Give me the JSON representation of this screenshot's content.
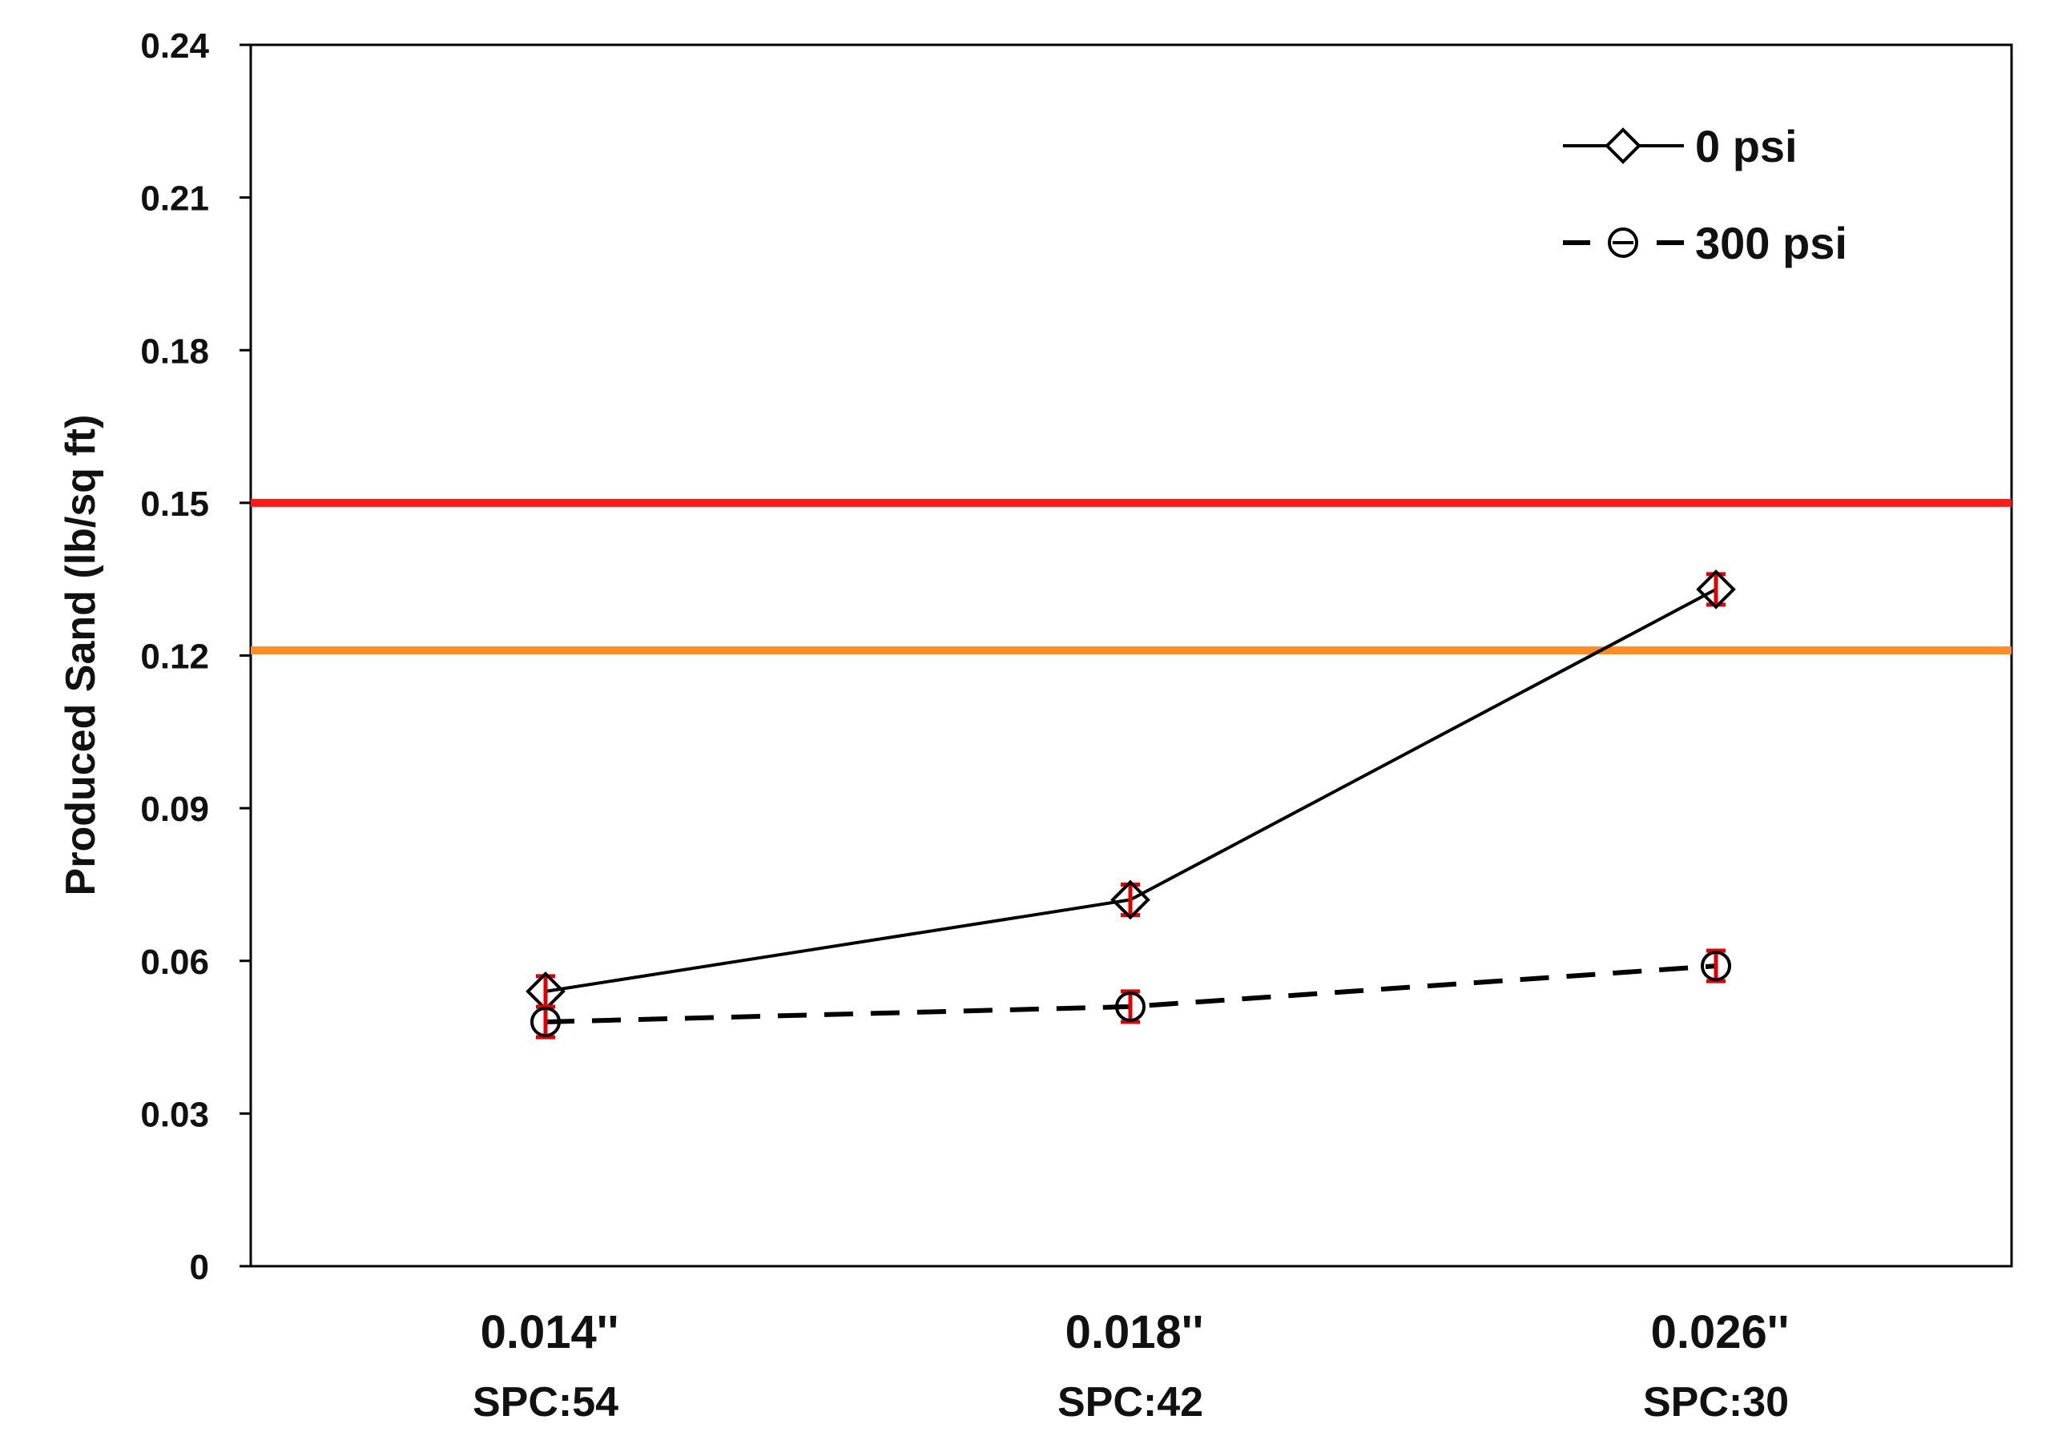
{
  "chart_data": {
    "type": "line",
    "title": "",
    "xlabel": "",
    "ylabel": "Produced Sand (lb/sq ft)",
    "ylim": [
      0,
      0.24
    ],
    "yticks": [
      "0",
      "0.03",
      "0.06",
      "0.09",
      "0.12",
      "0.15",
      "0.18",
      "0.21",
      "0.24"
    ],
    "categories": [
      {
        "line1": "0.014''",
        "line2": "SPC:54"
      },
      {
        "line1": "0.018''",
        "line2": "SPC:42"
      },
      {
        "line1": "0.026''",
        "line2": "SPC:30"
      }
    ],
    "grid": false,
    "legend_position": "top-right",
    "series": [
      {
        "name": "0 psi",
        "marker": "diamond",
        "line_style": "solid",
        "color": "#000000",
        "values": [
          0.054,
          0.072,
          0.133
        ],
        "errors": [
          0.003,
          0.003,
          0.003
        ]
      },
      {
        "name": "300 psi",
        "marker": "circle",
        "line_style": "dashed",
        "color": "#000000",
        "values": [
          0.048,
          0.051,
          0.059
        ],
        "errors": [
          0.003,
          0.003,
          0.003
        ]
      }
    ],
    "error_bar_color": "#e00000",
    "reference_lines": [
      {
        "y": 0.15,
        "color": "#ff1a1a"
      },
      {
        "y": 0.121,
        "color": "#ff8c28"
      }
    ]
  }
}
